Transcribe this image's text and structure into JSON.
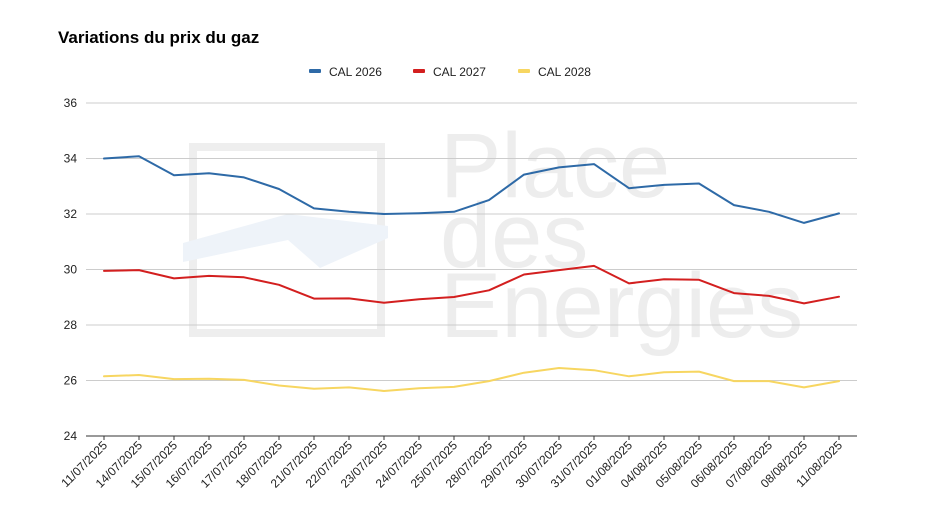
{
  "chart_data": {
    "type": "line",
    "title": "Variations du prix du gaz",
    "xlabel": "",
    "ylabel": "",
    "ylim": [
      24,
      36
    ],
    "yticks": [
      24,
      26,
      28,
      30,
      32,
      34,
      36
    ],
    "grid": true,
    "legend_position": "top-center",
    "categories": [
      "11/07/2025",
      "14/07/2025",
      "15/07/2025",
      "16/07/2025",
      "17/07/2025",
      "18/07/2025",
      "21/07/2025",
      "22/07/2025",
      "23/07/2025",
      "24/07/2025",
      "25/07/2025",
      "28/07/2025",
      "29/07/2025",
      "30/07/2025",
      "31/07/2025",
      "01/08/2025",
      "04/08/2025",
      "05/08/2025",
      "06/08/2025",
      "07/08/2025",
      "08/08/2025",
      "11/08/2025"
    ],
    "series": [
      {
        "name": "CAL 2026",
        "color": "#2e6aa7",
        "values": [
          34.0,
          34.08,
          33.4,
          33.47,
          33.32,
          32.9,
          32.2,
          32.08,
          32.0,
          32.03,
          32.08,
          32.5,
          33.42,
          33.68,
          33.8,
          32.93,
          33.05,
          33.1,
          32.32,
          32.08,
          31.68,
          32.02
        ]
      },
      {
        "name": "CAL 2027",
        "color": "#d31f1f",
        "values": [
          29.95,
          29.98,
          29.68,
          29.77,
          29.72,
          29.45,
          28.95,
          28.96,
          28.8,
          28.93,
          29.01,
          29.25,
          29.82,
          29.98,
          30.13,
          29.5,
          29.65,
          29.63,
          29.15,
          29.05,
          28.78,
          29.02
        ]
      },
      {
        "name": "CAL 2028",
        "color": "#f7d661",
        "values": [
          26.15,
          26.2,
          26.05,
          26.06,
          26.02,
          25.82,
          25.7,
          25.75,
          25.62,
          25.72,
          25.77,
          25.98,
          26.28,
          26.45,
          26.37,
          26.15,
          26.3,
          26.32,
          25.98,
          25.98,
          25.75,
          25.98
        ]
      }
    ]
  },
  "watermark": {
    "line1": "Place",
    "line2": "des",
    "line3": "Energies"
  }
}
